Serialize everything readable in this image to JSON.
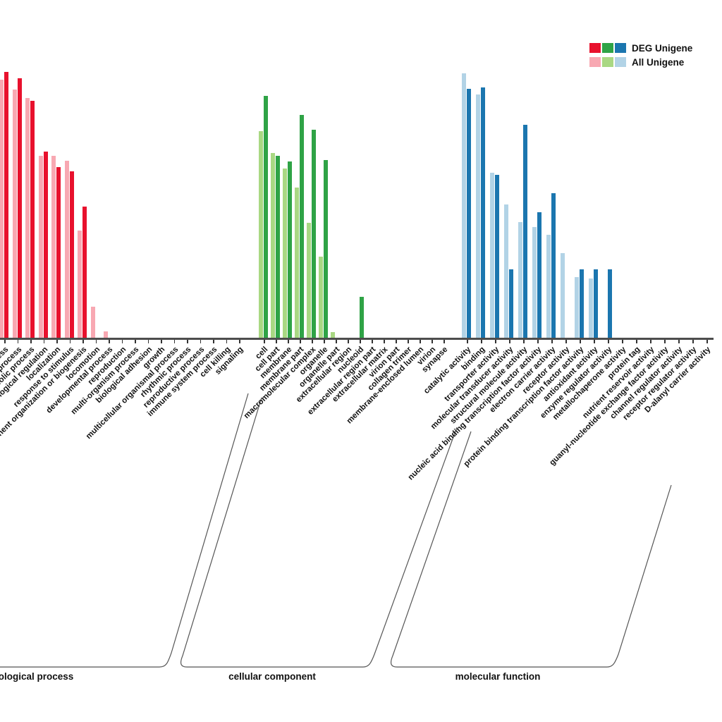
{
  "legend": {
    "deg_label": "DEG Unigene",
    "all_label": "All Unigene"
  },
  "colors": {
    "axis": "#4d4d4d",
    "bracket": "#555555",
    "bp_deg": "#e8112d",
    "bp_all": "#f8a8b2",
    "cc_deg": "#2fa346",
    "cc_all": "#a9d883",
    "mf_deg": "#1b76af",
    "mf_all": "#b2d3e6"
  },
  "chart_data": {
    "type": "bar",
    "title": "",
    "xlabel": "",
    "ylabel": "",
    "grid": false,
    "legend_position": "top-right",
    "legend_entries": [
      "DEG Unigene",
      "All Unigene"
    ],
    "units": "relative-height-px (y-axis cropped out of the screenshot)",
    "groups": [
      {
        "name": "biological process",
        "categories": [
          "cellular process",
          "single-organism process",
          "metabolic process",
          "biological regulation",
          "localization",
          "response to stimulus",
          "cellular component organization or biogenesis",
          "locomotion",
          "developmental process",
          "reproduction",
          "multi-organism process",
          "biological adhesion",
          "growth",
          "multicellular organismal process",
          "rhythmic process",
          "reproductive process",
          "immune system process",
          "cell killing",
          "signaling"
        ],
        "series": [
          {
            "name": "All Unigene",
            "values": [
              366,
              352,
              340,
              258,
              258,
              251,
              152,
              44,
              9,
              0,
              0,
              0,
              0,
              0,
              0,
              0,
              0,
              0,
              0
            ]
          },
          {
            "name": "DEG Unigene",
            "values": [
              377,
              368,
              336,
              264,
              242,
              236,
              186,
              0,
              0,
              0,
              0,
              0,
              0,
              0,
              0,
              0,
              0,
              0,
              0
            ]
          }
        ]
      },
      {
        "name": "cellular component",
        "categories": [
          "cell",
          "cell part",
          "membrane",
          "membrane part",
          "macromolecular complex",
          "organelle",
          "organelle part",
          "extracellular region",
          "nucleoid",
          "extracellular region part",
          "extracellular matrix",
          "virion part",
          "collagen trimer",
          "membrane-enclosed lumen",
          "virion",
          "synapse"
        ],
        "series": [
          {
            "name": "All Unigene",
            "values": [
              293,
              262,
              240,
              213,
              163,
              115,
              8,
              0,
              0,
              0,
              0,
              0,
              0,
              0,
              0,
              0
            ]
          },
          {
            "name": "DEG Unigene",
            "values": [
              343,
              258,
              250,
              316,
              295,
              252,
              0,
              0,
              58,
              0,
              0,
              0,
              0,
              0,
              0,
              0
            ]
          }
        ]
      },
      {
        "name": "molecular function",
        "categories": [
          "catalytic activity",
          "binding",
          "transporter activity",
          "molecular transducer activity",
          "structural molecule activity",
          "nucleic acid binding transcription factor activity",
          "electron carrier activity",
          "receptor activity",
          "protein binding transcription factor activity",
          "antioxidant activity",
          "enzyme regulator activity",
          "metallochaperone activity",
          "protein tag",
          "nutrient reservoir activity",
          "guanyl-nucleotide exchange factor activity",
          "channel regulator activity",
          "receptor regulator activity",
          "D-alanyl carrier activity"
        ],
        "series": [
          {
            "name": "All Unigene",
            "values": [
              375,
              345,
              234,
              189,
              164,
              157,
              146,
              120,
              86,
              84,
              0,
              0,
              0,
              0,
              0,
              0,
              0,
              0
            ]
          },
          {
            "name": "DEG Unigene",
            "values": [
              353,
              355,
              231,
              97,
              302,
              178,
              205,
              0,
              97,
              97,
              97,
              0,
              0,
              0,
              0,
              0,
              0,
              0
            ]
          }
        ]
      }
    ]
  }
}
